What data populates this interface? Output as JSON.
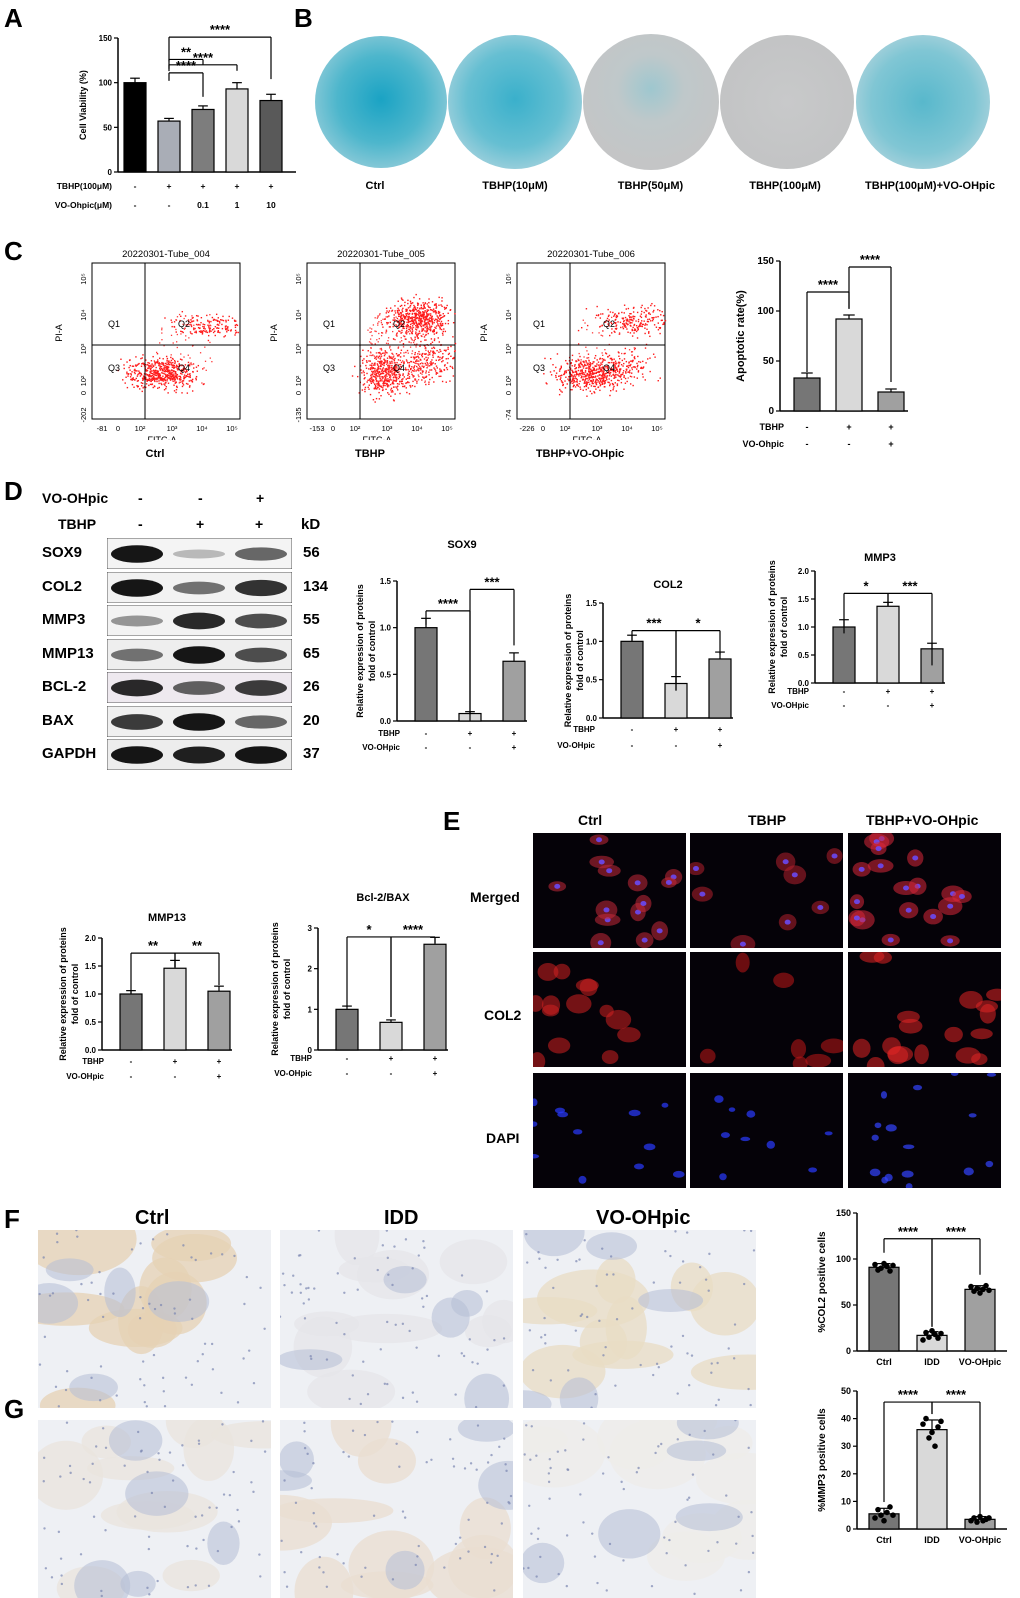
{
  "panels": {
    "A": "A",
    "B": "B",
    "C": "C",
    "D": "D",
    "E": "E",
    "F": "F",
    "G": "G"
  },
  "panelA": {
    "ylabel": "Cell Viability  (%)",
    "row1_label": "TBHP(100μM)",
    "row1": [
      "-",
      "+",
      "+",
      "+",
      "+"
    ],
    "row2_label": "VO-Ohpic(μM)",
    "row2": [
      "-",
      "-",
      "0.1",
      "1",
      "10"
    ],
    "sig": [
      "****",
      "**",
      "****",
      "****"
    ]
  },
  "panelB": {
    "labels": [
      "Ctrl",
      "TBHP(10μM)",
      "TBHP(50μM)",
      "TBHP(100μM)",
      "TBHP(100μM)+VO-OHpic"
    ]
  },
  "panelC": {
    "tubes": [
      "20220301-Tube_004",
      "20220301-Tube_005",
      "20220301-Tube_006"
    ],
    "quadrants": [
      "Q1",
      "Q2",
      "Q3",
      "Q4"
    ],
    "xaxis": "FITC-A",
    "yaxis": "PI-A",
    "captions": [
      "Ctrl",
      "TBHP",
      "TBHP+VO-OHpic"
    ],
    "plots": [
      {
        "xneg": "-81",
        "yneg": "-202"
      },
      {
        "xneg": "-153",
        "yneg": "-135"
      },
      {
        "xneg": "-226",
        "yneg": "-74"
      }
    ],
    "tick_labels": {
      "x10_2": "10²",
      "x10_3": "10³",
      "x10_4": "10⁴",
      "x10_5": "10⁵",
      "x0": "0"
    },
    "bar_ylabel": "Apoptotic rate(%)",
    "row1_label": "TBHP",
    "row1": [
      "-",
      "+",
      "+"
    ],
    "row2_label": "VO-Ohpic",
    "row2": [
      "-",
      "-",
      "+"
    ],
    "sig": [
      "****",
      "****"
    ]
  },
  "panelD": {
    "header1_label": "VO-OHpic",
    "header1": [
      "-",
      "-",
      "+"
    ],
    "header2_label": "TBHP",
    "header2": [
      "-",
      "+",
      "+"
    ],
    "kd_label": "kD",
    "proteins": [
      {
        "name": "SOX9",
        "kd": "56"
      },
      {
        "name": "COL2",
        "kd": "134"
      },
      {
        "name": "MMP3",
        "kd": "55"
      },
      {
        "name": "MMP13",
        "kd": "65"
      },
      {
        "name": "BCL-2",
        "kd": "26"
      },
      {
        "name": "BAX",
        "kd": "20"
      },
      {
        "name": "GAPDH",
        "kd": "37"
      }
    ],
    "bar_ylabel1": "Relative expression of proteins",
    "bar_ylabel2": "fold of control",
    "row1_label": "TBHP",
    "row1": [
      "-",
      "+",
      "+"
    ],
    "row2_label": "VO-OHpic",
    "row2": [
      "-",
      "-",
      "+"
    ]
  },
  "panelE": {
    "columns": [
      "Ctrl",
      "TBHP",
      "TBHP+VO-OHpic"
    ],
    "rows": [
      "Merged",
      "COL2",
      "DAPI"
    ]
  },
  "panelF": {
    "columns": [
      "Ctrl",
      "IDD",
      "VO-OHpic"
    ],
    "ylabel": "%COL2 positive cells",
    "sig": [
      "****",
      "****"
    ]
  },
  "panelG": {
    "ylabel": "%MMP3 positive cells",
    "sig": [
      "****",
      "****"
    ]
  },
  "chart_data": [
    {
      "id": "A",
      "type": "bar",
      "categories": [
        "1",
        "2",
        "3",
        "4",
        "5"
      ],
      "values": [
        100,
        57,
        70,
        93,
        80
      ],
      "errors": [
        5,
        3,
        4,
        7,
        7
      ],
      "ylabel": "Cell Viability  (%)",
      "ylim": [
        0,
        150
      ],
      "yticks": [
        0,
        50,
        100,
        150
      ],
      "colors": [
        "#000000",
        "#a9adb6",
        "#7d7d7d",
        "#d9d9d9",
        "#595959"
      ]
    },
    {
      "id": "C-bar",
      "type": "bar",
      "categories": [
        "1",
        "2",
        "3"
      ],
      "values": [
        33,
        92,
        19
      ],
      "errors": [
        5,
        4,
        3
      ],
      "ylabel": "Apoptotic rate(%)",
      "ylim": [
        0,
        150
      ],
      "yticks": [
        0,
        50,
        100,
        150
      ],
      "colors": [
        "#767676",
        "#d9d9d9",
        "#a0a0a0"
      ]
    },
    {
      "id": "SOX9",
      "type": "bar",
      "title": "SOX9",
      "categories": [
        "1",
        "2",
        "3"
      ],
      "values": [
        1.0,
        0.08,
        0.64
      ],
      "errors": [
        0.1,
        0.02,
        0.09
      ],
      "ylim": [
        0,
        1.5
      ],
      "yticks": [
        0.0,
        0.5,
        1.0,
        1.5
      ],
      "colors": [
        "#767676",
        "#d9d9d9",
        "#a0a0a0"
      ],
      "sig": [
        "****",
        "***"
      ]
    },
    {
      "id": "COL2",
      "type": "bar",
      "title": "COL2",
      "categories": [
        "1",
        "2",
        "3"
      ],
      "values": [
        1.0,
        0.45,
        0.77
      ],
      "errors": [
        0.08,
        0.09,
        0.09
      ],
      "ylim": [
        0,
        1.5
      ],
      "yticks": [
        0.0,
        0.5,
        1.0,
        1.5
      ],
      "colors": [
        "#767676",
        "#d9d9d9",
        "#a0a0a0"
      ],
      "sig": [
        "***",
        "*"
      ]
    },
    {
      "id": "MMP3",
      "type": "bar",
      "title": "MMP3",
      "categories": [
        "1",
        "2",
        "3"
      ],
      "values": [
        1.0,
        1.37,
        0.61
      ],
      "errors": [
        0.13,
        0.07,
        0.1
      ],
      "ylim": [
        0,
        2.0
      ],
      "yticks": [
        0.0,
        0.5,
        1.0,
        1.5,
        2.0
      ],
      "colors": [
        "#767676",
        "#d9d9d9",
        "#a0a0a0"
      ],
      "sig": [
        "*",
        "***"
      ]
    },
    {
      "id": "MMP13",
      "type": "bar",
      "title": "MMP13",
      "categories": [
        "1",
        "2",
        "3"
      ],
      "values": [
        1.0,
        1.46,
        1.05
      ],
      "errors": [
        0.06,
        0.14,
        0.09
      ],
      "ylim": [
        0,
        2.0
      ],
      "yticks": [
        0.0,
        0.5,
        1.0,
        1.5,
        2.0
      ],
      "colors": [
        "#767676",
        "#d9d9d9",
        "#a0a0a0"
      ],
      "sig": [
        "**",
        "**"
      ]
    },
    {
      "id": "BCL2BAX",
      "type": "bar",
      "title": "Bcl-2/BAX",
      "categories": [
        "1",
        "2",
        "3"
      ],
      "values": [
        1.0,
        0.68,
        2.6
      ],
      "errors": [
        0.08,
        0.06,
        0.17
      ],
      "ylim": [
        0,
        3
      ],
      "yticks": [
        0,
        1,
        2,
        3
      ],
      "colors": [
        "#767676",
        "#d9d9d9",
        "#a0a0a0"
      ],
      "sig": [
        "*",
        "****"
      ]
    },
    {
      "id": "F",
      "type": "bar",
      "categories": [
        "Ctrl",
        "IDD",
        "VO-OHpic"
      ],
      "values": [
        91,
        17,
        67
      ],
      "errors": [
        4,
        4,
        4
      ],
      "points": [
        [
          94,
          88,
          90,
          95,
          92,
          87,
          93
        ],
        [
          12,
          20,
          15,
          22,
          18,
          14,
          19
        ],
        [
          70,
          65,
          68,
          63,
          67,
          71,
          66
        ]
      ],
      "ylabel": "%COL2 positive cells",
      "ylim": [
        0,
        150
      ],
      "yticks": [
        0,
        50,
        100,
        150
      ],
      "colors": [
        "#767676",
        "#d9d9d9",
        "#a0a0a0"
      ]
    },
    {
      "id": "G",
      "type": "bar",
      "categories": [
        "Ctrl",
        "IDD",
        "VO-OHpic"
      ],
      "values": [
        5.5,
        36,
        3.5
      ],
      "errors": [
        2,
        3.5,
        1
      ],
      "points": [
        [
          4,
          7,
          5,
          3,
          6,
          8,
          5
        ],
        [
          38,
          40,
          33,
          35,
          30,
          37,
          39
        ],
        [
          3,
          4,
          2.5,
          4.5,
          3,
          3.5,
          4
        ]
      ],
      "ylabel": "%MMP3 positive cells",
      "ylim": [
        0,
        50
      ],
      "yticks": [
        0,
        10,
        20,
        30,
        40,
        50
      ],
      "colors": [
        "#767676",
        "#d9d9d9",
        "#a0a0a0"
      ]
    }
  ]
}
